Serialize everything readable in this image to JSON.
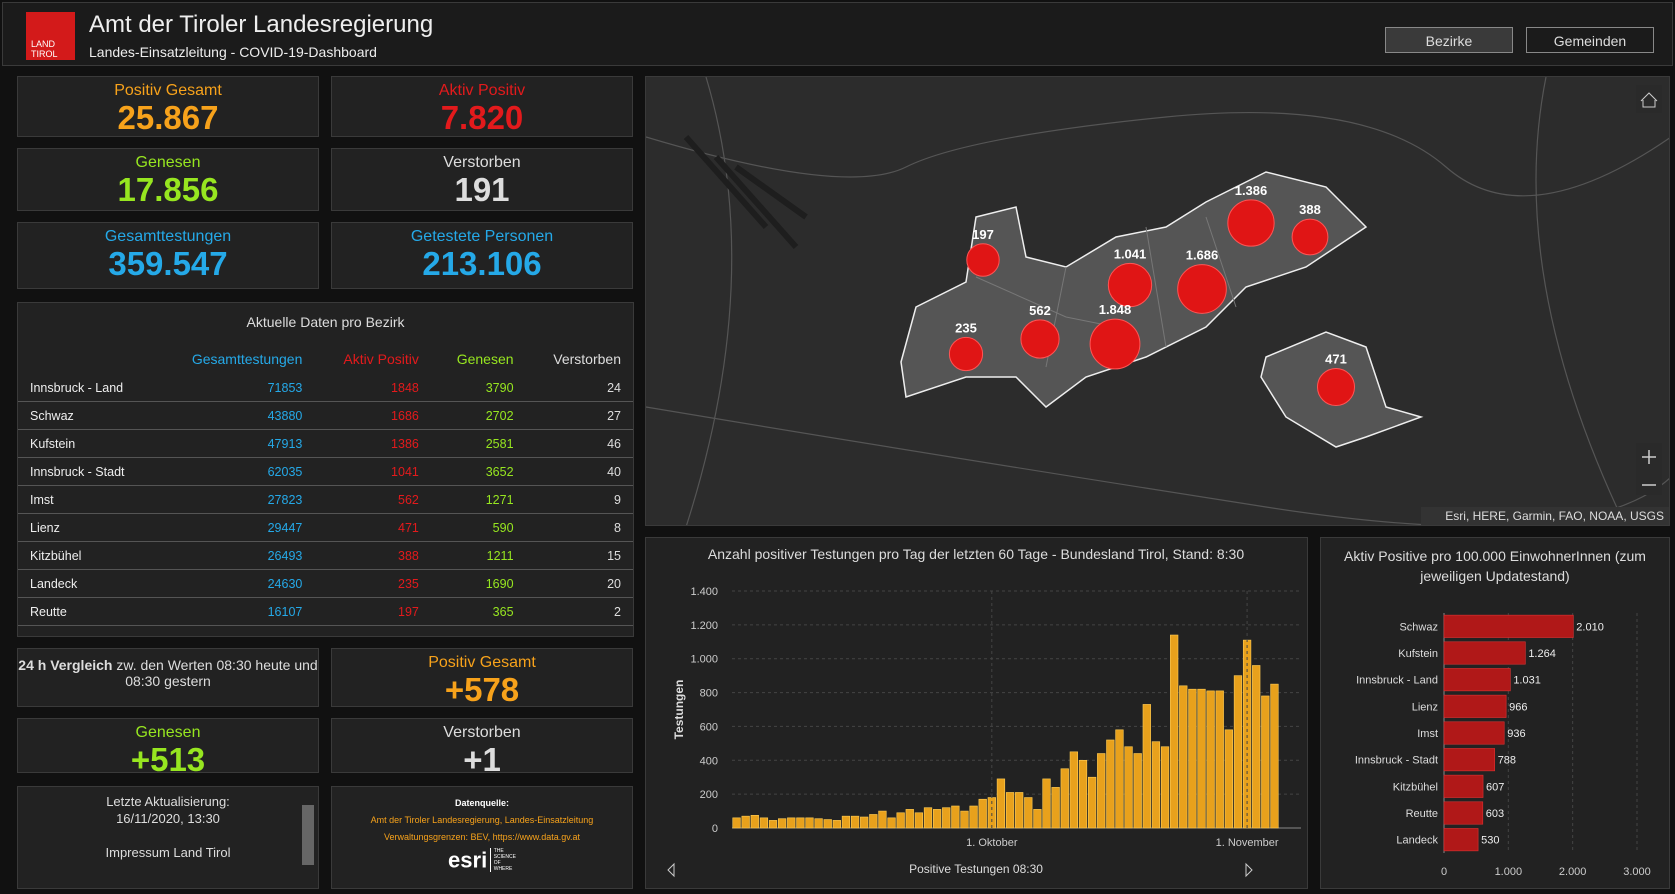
{
  "header": {
    "logo": [
      "LAND",
      "TIROL"
    ],
    "title": "Amt der Tiroler Landesregierung",
    "subtitle": "Landes-Einsatzleitung - COVID-19-Dashboard",
    "buttons": [
      "Bezirke",
      "Gemeinden"
    ]
  },
  "tiles": [
    {
      "label": "Positiv Gesamt",
      "value": "25.867",
      "color": "#f7a21b"
    },
    {
      "label": "Aktiv Positiv",
      "value": "7.820",
      "color": "#e31a1c"
    },
    {
      "label": "Genesen",
      "value": "17.856",
      "color": "#97e620"
    },
    {
      "label": "Verstorben",
      "value": "191",
      "color": "#dddddd"
    },
    {
      "label": "Gesamttestungen",
      "value": "359.547",
      "color": "#25a9e8"
    },
    {
      "label": "Getestete Personen",
      "value": "213.106",
      "color": "#25a9e8"
    }
  ],
  "table": {
    "title": "Aktuelle Daten pro Bezirk",
    "columns": [
      "Gesamttestungen",
      "Aktiv Positiv",
      "Genesen",
      "Verstorben"
    ],
    "column_colors": [
      "#25a9e8",
      "#e31a1c",
      "#97e620",
      "#dddddd"
    ],
    "rows": [
      [
        "Innsbruck - Land",
        71853,
        1848,
        3790,
        24
      ],
      [
        "Schwaz",
        43880,
        1686,
        2702,
        27
      ],
      [
        "Kufstein",
        47913,
        1386,
        2581,
        46
      ],
      [
        "Innsbruck - Stadt",
        62035,
        1041,
        3652,
        40
      ],
      [
        "Imst",
        27823,
        562,
        1271,
        9
      ],
      [
        "Lienz",
        29447,
        471,
        590,
        8
      ],
      [
        "Kitzbühel",
        26493,
        388,
        1211,
        15
      ],
      [
        "Landeck",
        24630,
        235,
        1690,
        20
      ],
      [
        "Reutte",
        16107,
        197,
        365,
        2
      ]
    ]
  },
  "comparison": {
    "bold": "24 h Vergleich",
    "text": "zw. den Werten 08:30 heute und 08:30 gestern",
    "tiles": [
      {
        "label": "Positiv Gesamt",
        "value": "+578",
        "color": "#f7a21b"
      },
      {
        "label": "Genesen",
        "value": "+513",
        "color": "#97e620"
      },
      {
        "label": "Verstorben",
        "value": "+1",
        "color": "#dddddd"
      }
    ]
  },
  "update": {
    "lines": [
      "Letzte Aktualisierung:",
      "16/11/2020, 13:30"
    ],
    "link": "Impressum Land Tirol"
  },
  "source": {
    "title": "Datenquelle:",
    "lines": [
      "Amt der Tiroler Landesregierung, Landes-Einsatzleitung",
      "Verwaltungsgrenzen: BEV, https://www.data.gv.at"
    ],
    "logo": "esri",
    "tagline": [
      "THE",
      "SCIENCE",
      "OF",
      "WHERE"
    ]
  },
  "map": {
    "attribution": "Esri, HERE, Garmin, FAO, NOAA, USGS",
    "bubbles": [
      {
        "label": "197",
        "value": 197
      },
      {
        "label": "235",
        "value": 235
      },
      {
        "label": "562",
        "value": 562
      },
      {
        "label": "1.041",
        "value": 1041
      },
      {
        "label": "1.848",
        "value": 1848
      },
      {
        "label": "1.686",
        "value": 1686
      },
      {
        "label": "1.386",
        "value": 1386
      },
      {
        "label": "388",
        "value": 388
      },
      {
        "label": "471",
        "value": 471
      }
    ]
  },
  "chart_data": [
    {
      "type": "bar",
      "title": "Anzahl positiver Testungen pro Tag der letzten 60 Tage - Bundesland Tirol, Stand: 8:30",
      "ylabel": "Testungen",
      "xlabel": "Positive Testungen 08:30",
      "color": "#e8a11c",
      "grid": true,
      "categories": [
        null,
        null,
        null,
        null,
        null,
        null,
        null,
        null,
        null,
        null,
        null,
        null,
        null,
        null,
        null,
        null,
        null,
        null,
        null,
        null,
        null,
        null,
        null,
        null,
        null,
        null,
        null,
        null,
        "1. Oktober",
        null,
        null,
        null,
        null,
        null,
        null,
        null,
        null,
        null,
        null,
        null,
        null,
        null,
        null,
        null,
        null,
        null,
        null,
        null,
        null,
        null,
        null,
        null,
        null,
        null,
        null,
        null,
        "1. November",
        null,
        null,
        null
      ],
      "values": [
        60,
        70,
        75,
        60,
        45,
        55,
        60,
        60,
        60,
        55,
        50,
        45,
        70,
        70,
        65,
        80,
        100,
        60,
        90,
        110,
        90,
        120,
        110,
        120,
        130,
        100,
        130,
        170,
        180,
        290,
        210,
        210,
        180,
        110,
        290,
        240,
        350,
        450,
        400,
        300,
        440,
        520,
        580,
        480,
        440,
        730,
        510,
        480,
        1140,
        840,
        820,
        820,
        810,
        810,
        580,
        900,
        1110,
        960,
        780,
        850
      ],
      "ylim": [
        0,
        1400
      ],
      "yticks": [
        0,
        200,
        400,
        600,
        800,
        {
          "value": 1000,
          "label": "1.000"
        },
        {
          "value": 1200,
          "label": "1.200"
        },
        {
          "value": 1400,
          "label": "1.400"
        }
      ]
    },
    {
      "type": "hbar",
      "title": "Aktiv Positive pro 100.000 EinwohnerInnen (zum jeweiligen Updatestand)",
      "color": "#b01818",
      "grid": true,
      "categories": [
        "Schwaz",
        "Kufstein",
        "Innsbruck - Land",
        "Lienz",
        "Imst",
        "Innsbruck - Stadt",
        "Kitzbühel",
        "Reutte",
        "Landeck"
      ],
      "values": [
        2010,
        1264,
        1031,
        966,
        936,
        788,
        607,
        603,
        530
      ],
      "value_labels": [
        "2.010",
        "1.264",
        "1.031",
        "966",
        "936",
        "788",
        "607",
        "603",
        "530"
      ],
      "xlim": [
        0,
        3000
      ],
      "xticks": [
        0,
        {
          "value": 1000,
          "label": "1.000"
        },
        {
          "value": 2000,
          "label": "2.000"
        },
        {
          "value": 3000,
          "label": "3.000"
        }
      ]
    }
  ]
}
